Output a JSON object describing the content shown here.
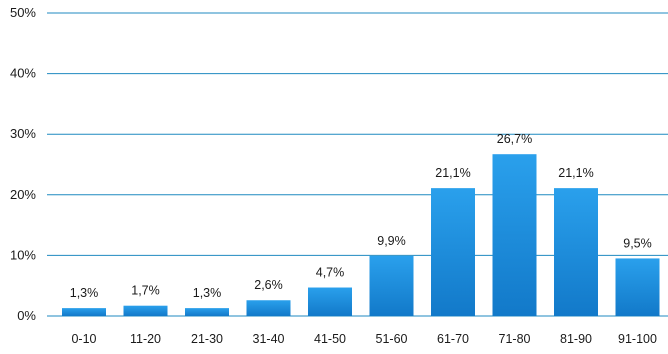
{
  "chart_data": {
    "type": "bar",
    "categories": [
      "0-10",
      "11-20",
      "21-30",
      "31-40",
      "41-50",
      "51-60",
      "61-70",
      "71-80",
      "81-90",
      "91-100"
    ],
    "values": [
      1.3,
      1.7,
      1.3,
      2.6,
      4.7,
      9.9,
      21.1,
      26.7,
      21.1,
      9.5
    ],
    "value_labels": [
      "1,3%",
      "1,7%",
      "1,3%",
      "2,6%",
      "4,7%",
      "9,9%",
      "21,1%",
      "26,7%",
      "21,1%",
      "9,5%"
    ],
    "y_ticks": [
      0,
      10,
      20,
      30,
      40,
      50
    ],
    "y_tick_labels": [
      "0%",
      "10%",
      "20%",
      "30%",
      "40%",
      "50%"
    ],
    "ylim": [
      0,
      50
    ],
    "title": "",
    "xlabel": "",
    "ylabel": "",
    "grid": "horizontal",
    "legend": "none",
    "colors": {
      "bar_top": "#2aa0ec",
      "bar_bottom": "#1279c9",
      "gridline": "#1f8ac0",
      "text": "#1a1a1a"
    }
  }
}
